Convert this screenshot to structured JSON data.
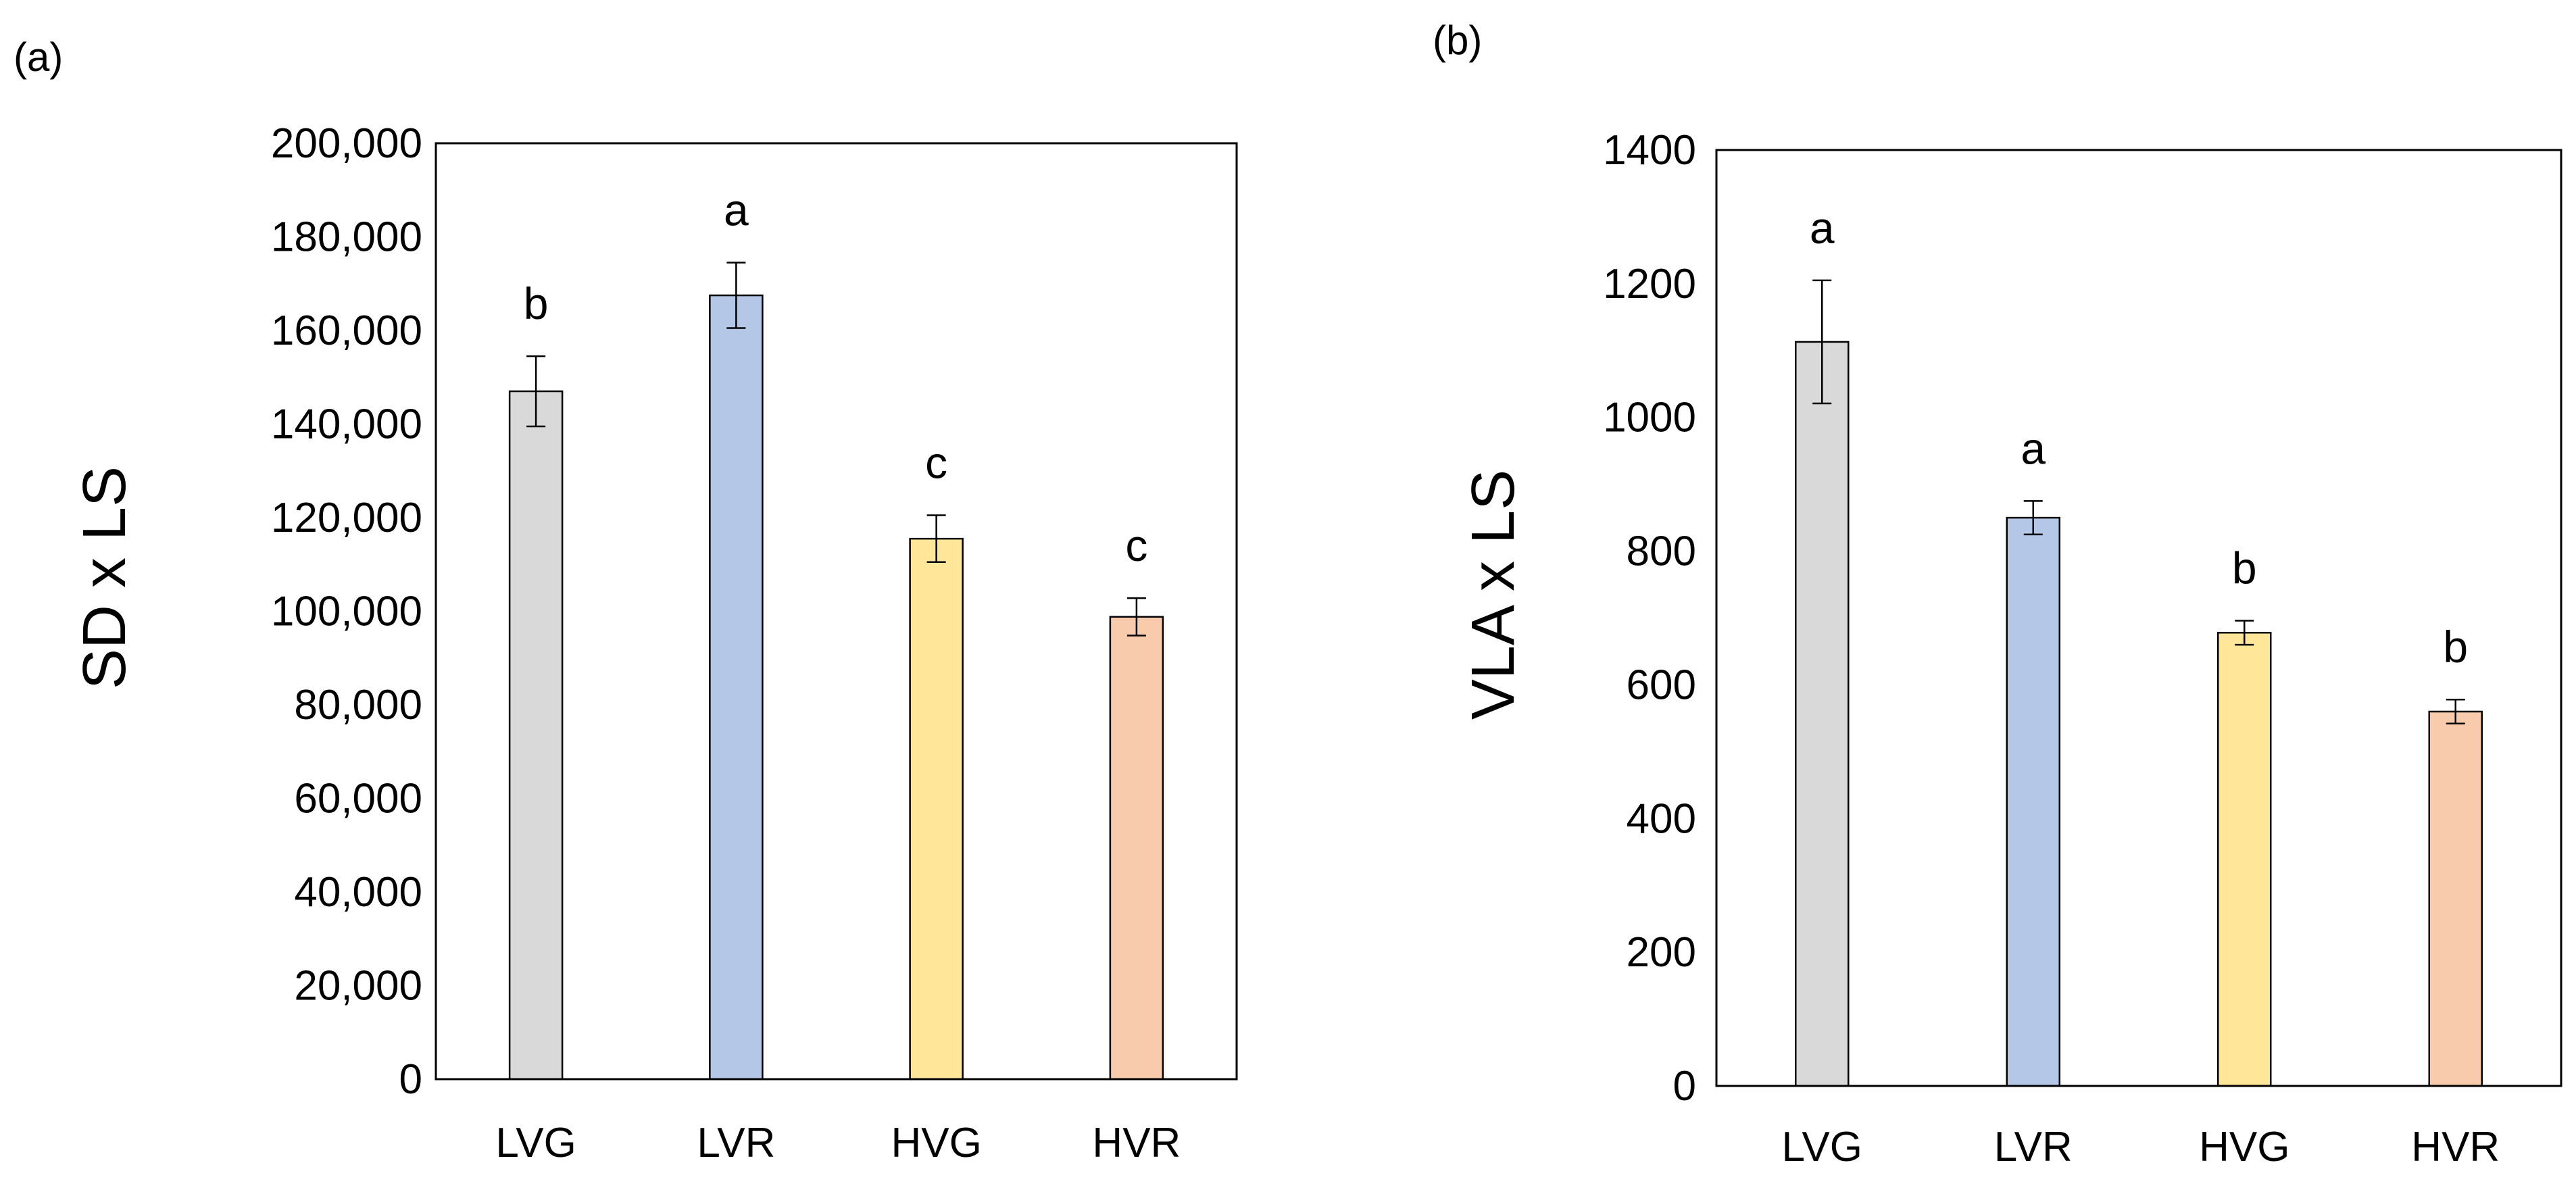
{
  "chart_data": [
    {
      "type": "bar",
      "panel_label": "(a)",
      "title": "",
      "xlabel": "",
      "ylabel": "SD x LS",
      "categories": [
        "LVG",
        "LVR",
        "HVG",
        "HVR"
      ],
      "values": [
        147000,
        167500,
        115500,
        98800
      ],
      "errors": [
        7500,
        7000,
        5000,
        4000
      ],
      "significance": [
        "b",
        "a",
        "c",
        "c"
      ],
      "colors": [
        "#d9d9d9",
        "#b4c7e7",
        "#ffe699",
        "#f8cbad"
      ],
      "ylim": [
        0,
        200000
      ],
      "yticks": [
        0,
        20000,
        40000,
        60000,
        80000,
        100000,
        120000,
        140000,
        160000,
        180000,
        200000
      ],
      "ytick_labels": [
        "0",
        "20,000",
        "40,000",
        "60,000",
        "80,000",
        "100,000",
        "120,000",
        "140,000",
        "160,000",
        "180,000",
        "200,000"
      ],
      "grid": false,
      "legend": "none"
    },
    {
      "type": "bar",
      "panel_label": "(b)",
      "title": "",
      "xlabel": "",
      "ylabel": "VLA x LS",
      "categories": [
        "LVG",
        "LVR",
        "HVG",
        "HVR"
      ],
      "values": [
        1113,
        850,
        678,
        560
      ],
      "errors": [
        92,
        25,
        18,
        18
      ],
      "significance": [
        "a",
        "a",
        "b",
        "b"
      ],
      "colors": [
        "#d9d9d9",
        "#b4c7e7",
        "#ffe699",
        "#f8cbad"
      ],
      "ylim": [
        0,
        1400
      ],
      "yticks": [
        0,
        200,
        400,
        600,
        800,
        1000,
        1200,
        1400
      ],
      "ytick_labels": [
        "0",
        "200",
        "400",
        "600",
        "800",
        "1000",
        "1200",
        "1400"
      ],
      "grid": false,
      "legend": "none"
    }
  ]
}
